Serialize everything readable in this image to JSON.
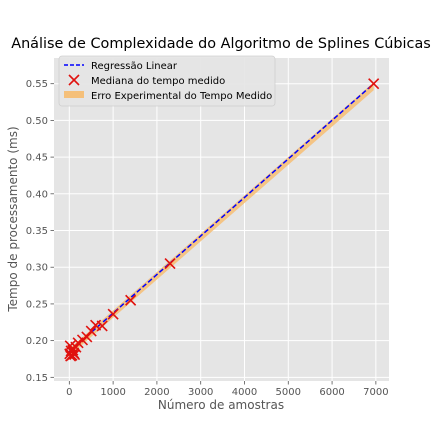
{
  "chart_data": {
    "type": "scatter",
    "title": "Análise de Complexidade do Algoritmo de Splines Cúbicas",
    "xlabel": "Número de amostras",
    "ylabel": "Tempo de processamento (ms)",
    "xlim": [
      -350,
      7300
    ],
    "ylim": [
      0.145,
      0.585
    ],
    "xticks": [
      0,
      1000,
      2000,
      3000,
      4000,
      5000,
      6000,
      7000
    ],
    "yticks": [
      0.15,
      0.2,
      0.25,
      0.3,
      0.35,
      0.4,
      0.45,
      0.5,
      0.55
    ],
    "grid": true,
    "legend": "top-left",
    "series": [
      {
        "name": "Regressão Linear",
        "kind": "line",
        "style": "dashed",
        "color": "#0000ff",
        "x": [
          0,
          6950
        ],
        "y": [
          0.185,
          0.55
        ]
      },
      {
        "name": "Mediana do tempo medido",
        "kind": "scatter",
        "marker": "x",
        "color": "#e0120f",
        "x": [
          10,
          20,
          30,
          40,
          60,
          80,
          100,
          120,
          150,
          200,
          300,
          400,
          500,
          600,
          750,
          1000,
          1400,
          2300,
          6950
        ],
        "y": [
          0.182,
          0.193,
          0.179,
          0.186,
          0.18,
          0.187,
          0.183,
          0.181,
          0.191,
          0.197,
          0.201,
          0.205,
          0.213,
          0.221,
          0.22,
          0.236,
          0.255,
          0.305,
          0.55
        ]
      },
      {
        "name": "Erro Experimental do Tempo Medido",
        "kind": "band",
        "color": "#f5c07a",
        "x": [
          0,
          6950
        ],
        "lower": [
          0.179,
          0.541
        ],
        "upper": [
          0.189,
          0.552
        ]
      }
    ]
  }
}
